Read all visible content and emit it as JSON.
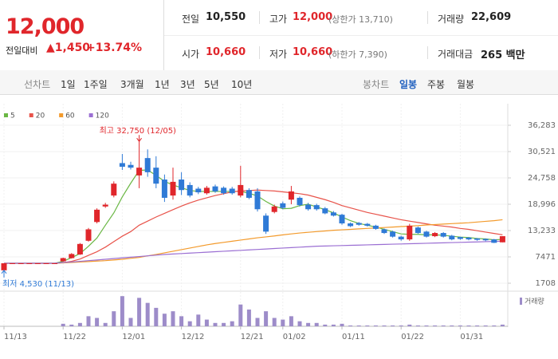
{
  "quote": {
    "price": "12,000",
    "change_label": "전일대비",
    "change": "▲1,450",
    "change_rate": "+13.74%"
  },
  "summary": {
    "prev_close": {
      "label": "전일",
      "value": "10,550"
    },
    "high": {
      "label": "고가",
      "value": "12,000",
      "note": "(상한가 13,710)"
    },
    "volume": {
      "label": "거래량",
      "value": "22,609"
    },
    "open": {
      "label": "시가",
      "value": "10,660"
    },
    "low": {
      "label": "저가",
      "value": "10,660",
      "note": "(하한가 7,390)"
    },
    "amount": {
      "label": "거래대금",
      "value": "265 백만"
    }
  },
  "tabs": {
    "line_label": "선차트",
    "line": [
      "1일",
      "1주일",
      "3개월",
      "1년",
      "3년",
      "5년",
      "10년"
    ],
    "candle_label": "봉차트",
    "candle": [
      "일봉",
      "주봉",
      "월봉"
    ],
    "selected": "일봉"
  },
  "chart_data": {
    "type": "candlestick",
    "categories": [
      "11/13",
      null,
      null,
      null,
      null,
      null,
      null,
      "11/22",
      null,
      null,
      null,
      null,
      null,
      null,
      "12/01",
      null,
      null,
      null,
      null,
      null,
      null,
      "12/12",
      null,
      null,
      null,
      null,
      null,
      null,
      "12/21",
      null,
      null,
      null,
      null,
      "01/02",
      null,
      null,
      null,
      null,
      null,
      null,
      "01/11",
      null,
      null,
      null,
      null,
      null,
      null,
      "01/22",
      null,
      null,
      null,
      null,
      null,
      null,
      "01/31",
      null,
      null,
      null,
      null,
      null
    ],
    "open": [
      4530,
      6073,
      6073,
      6073,
      6073,
      6073,
      6073,
      6500,
      7200,
      8000,
      11000,
      15100,
      18500,
      20900,
      28000,
      27600,
      25300,
      29100,
      27000,
      24400,
      20900,
      24400,
      23200,
      22400,
      21400,
      22900,
      22600,
      22400,
      20900,
      22100,
      21800,
      16500,
      17300,
      19200,
      20000,
      20400,
      18900,
      18800,
      18100,
      17200,
      16700,
      14800,
      14900,
      14700,
      14300,
      13500,
      13000,
      11900,
      11300,
      13900,
      13000,
      12000,
      12700,
      12100,
      11800,
      11700,
      11500,
      11400,
      11300,
      10660
    ],
    "high": [
      6073,
      6073,
      6073,
      6073,
      6073,
      6073,
      6073,
      7300,
      8300,
      10500,
      13800,
      18100,
      19300,
      24000,
      30000,
      28300,
      32750,
      31000,
      29500,
      25500,
      27000,
      26000,
      23800,
      22800,
      23000,
      23300,
      22900,
      22800,
      27400,
      22500,
      22500,
      17000,
      18900,
      19600,
      23000,
      20700,
      19300,
      19100,
      18400,
      17500,
      16900,
      15000,
      15100,
      14900,
      14500,
      13700,
      13200,
      12100,
      14700,
      14100,
      13200,
      12900,
      12900,
      12300,
      11900,
      11800,
      11600,
      11500,
      11400,
      12000
    ],
    "low": [
      4530,
      6073,
      6073,
      6073,
      6073,
      6073,
      6073,
      6400,
      7100,
      7900,
      10800,
      14800,
      18200,
      20500,
      26500,
      26600,
      22500,
      25000,
      22500,
      19500,
      20000,
      21000,
      20500,
      21200,
      21100,
      21500,
      21100,
      21100,
      20500,
      20100,
      17400,
      12500,
      17000,
      17900,
      19000,
      18500,
      17600,
      17600,
      16800,
      16300,
      14500,
      14000,
      14300,
      14100,
      13400,
      12500,
      11700,
      11000,
      11000,
      12500,
      11700,
      11800,
      11700,
      11100,
      11200,
      11100,
      11000,
      10900,
      10500,
      10660
    ],
    "close": [
      6073,
      6073,
      6073,
      6073,
      6073,
      6073,
      6073,
      7200,
      8100,
      10300,
      13500,
      17800,
      18900,
      23500,
      27200,
      27000,
      27000,
      26000,
      23500,
      20400,
      23900,
      22100,
      20900,
      21600,
      22600,
      21800,
      21400,
      21400,
      23200,
      20400,
      17900,
      13000,
      18500,
      18200,
      21800,
      18800,
      17900,
      17900,
      17000,
      16500,
      14800,
      14200,
      14500,
      14300,
      13600,
      12700,
      11900,
      11300,
      14300,
      12700,
      11900,
      12700,
      11900,
      11300,
      11400,
      11300,
      11200,
      11100,
      10550,
      12000
    ],
    "up_color": "#e0262b",
    "down_color": "#2f7ad6",
    "series": [
      {
        "name": "5",
        "color": "#6ab744",
        "values": [
          6073,
          6073,
          6073,
          6073,
          6073,
          6073,
          6073,
          6500,
          7300,
          8200,
          9800,
          11600,
          14400,
          17100,
          20600,
          23600,
          26400,
          26500,
          25300,
          24000,
          23200,
          22600,
          22000,
          21800,
          21800,
          21800,
          21800,
          21800,
          21800,
          21400,
          20800,
          19600,
          18600,
          18000,
          18100,
          18700,
          19000,
          18400,
          17800,
          17100,
          16200,
          15400,
          14800,
          14400,
          14000,
          13500,
          13000,
          12500,
          12400,
          12400,
          12300,
          12300,
          12200,
          12000,
          11800,
          11700,
          11500,
          11400,
          11200,
          11300
        ]
      },
      {
        "name": "20",
        "color": "#e8534a",
        "values": [
          6073,
          6073,
          6073,
          6073,
          6073,
          6073,
          6073,
          6200,
          6500,
          7000,
          7800,
          8600,
          9600,
          10800,
          12000,
          13000,
          14400,
          15300,
          16200,
          17000,
          17800,
          18600,
          19300,
          19900,
          20400,
          20900,
          21300,
          21700,
          21900,
          22000,
          22100,
          22000,
          21900,
          21700,
          21500,
          21300,
          21000,
          20500,
          20000,
          19400,
          18700,
          18200,
          17700,
          17200,
          16800,
          16400,
          16000,
          15600,
          15300,
          15000,
          14700,
          14400,
          14200,
          14000,
          13700,
          13500,
          13200,
          12900,
          12600,
          12300
        ]
      },
      {
        "name": "60",
        "color": "#f39a2b",
        "values": [
          6073,
          6073,
          6073,
          6073,
          6073,
          6073,
          6073,
          6150,
          6250,
          6350,
          6450,
          6550,
          6650,
          6800,
          6950,
          7150,
          7350,
          7700,
          8000,
          8350,
          8700,
          9050,
          9400,
          9750,
          10100,
          10400,
          10650,
          10900,
          11150,
          11400,
          11650,
          11850,
          12050,
          12300,
          12500,
          12700,
          12850,
          13000,
          13150,
          13300,
          13400,
          13500,
          13600,
          13700,
          13800,
          13900,
          14000,
          14100,
          14200,
          14300,
          14450,
          14550,
          14650,
          14750,
          14850,
          14950,
          15100,
          15250,
          15400,
          15600
        ]
      },
      {
        "name": "120",
        "color": "#9b6fd3",
        "values": [
          6073,
          6073,
          6073,
          6073,
          6073,
          6073,
          6073,
          6250,
          6350,
          6500,
          6650,
          6800,
          6950,
          7100,
          7250,
          7400,
          7550,
          7700,
          7850,
          8000,
          8100,
          8200,
          8300,
          8400,
          8500,
          8600,
          8700,
          8800,
          8900,
          9000,
          9100,
          9200,
          9300,
          9400,
          9500,
          9600,
          9700,
          9800,
          9850,
          9900,
          9950,
          10000,
          10050,
          10100,
          10150,
          10200,
          10250,
          10300,
          10350,
          10400,
          10450,
          10500,
          10550,
          10600,
          10650,
          10700,
          10750,
          10800,
          10850,
          10900
        ]
      }
    ],
    "volume_name": "거래량",
    "volume_color": "#9d8cc9",
    "volume": [
      0,
      0,
      0,
      0,
      0,
      0,
      0,
      34000,
      22600,
      45200,
      136000,
      113000,
      45200,
      203000,
      407000,
      113000,
      384000,
      316000,
      249000,
      170000,
      203000,
      136000,
      67800,
      158000,
      90400,
      45200,
      45200,
      67800,
      294000,
      226000,
      113000,
      203000,
      113000,
      90400,
      136000,
      67800,
      45200,
      45200,
      22600,
      22600,
      34000,
      11300,
      11300,
      11300,
      11300,
      11300,
      11300,
      11300,
      22600,
      11300,
      11300,
      11300,
      11300,
      11300,
      11300,
      11300,
      11300,
      11300,
      11300,
      22609
    ],
    "volume_ylim": [
      0,
      420000
    ],
    "ylim": [
      1708,
      36283
    ],
    "yticks": [
      {
        "value": 36283,
        "label": "36,283"
      },
      {
        "value": 30521,
        "label": "30,521"
      },
      {
        "value": 24758,
        "label": "24,758"
      },
      {
        "value": 18996,
        "label": "18,996"
      },
      {
        "value": 13233,
        "label": "13,233"
      },
      7471,
      1708
    ],
    "grid": true,
    "annotations": [
      {
        "text": "최고 32,750 (12/05)",
        "index": 16,
        "value": 32750,
        "kind": "high"
      },
      {
        "text": "최저 4,530 (11/13)",
        "index": 0,
        "value": 4530,
        "kind": "low"
      }
    ]
  }
}
